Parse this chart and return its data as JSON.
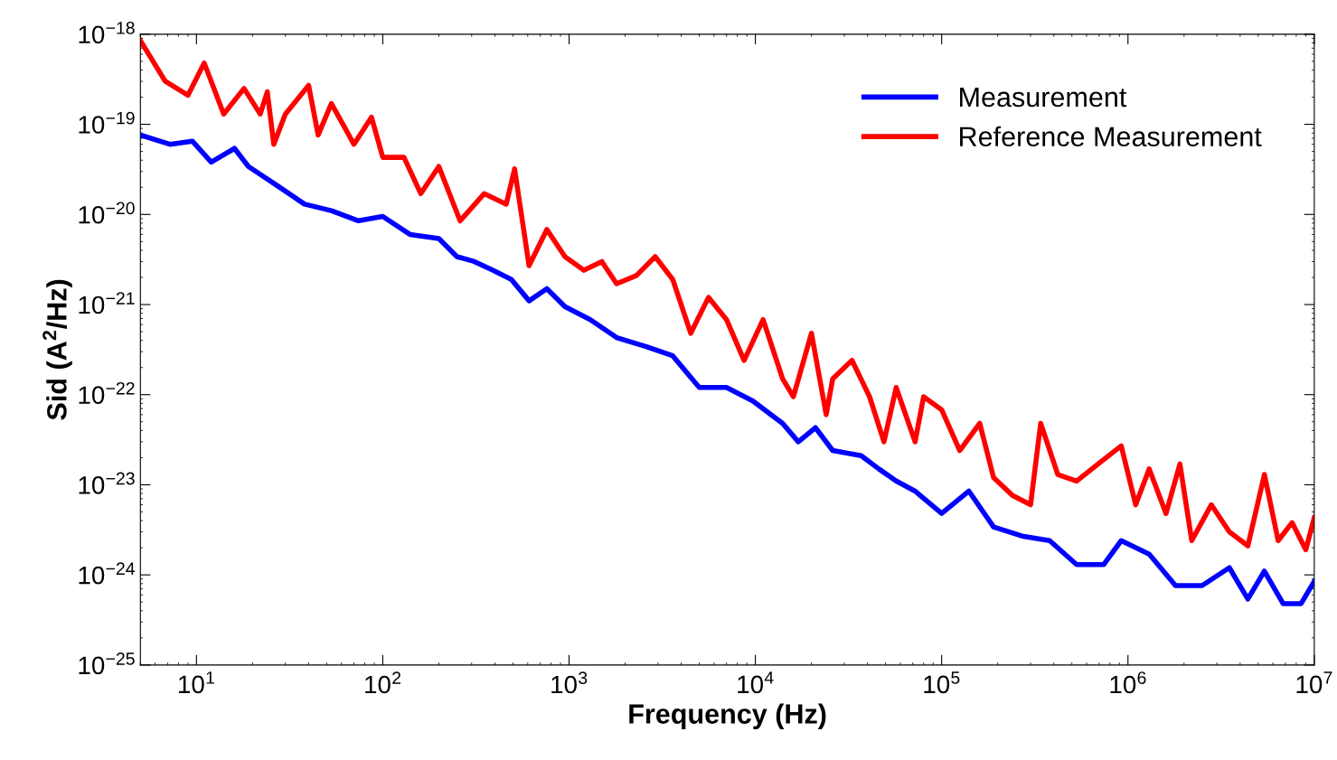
{
  "chart_data": {
    "type": "line",
    "xlabel": "Frequency (Hz)",
    "ylabel": "Sid (A$^{2}$/Hz)",
    "log": "xy",
    "grid": false,
    "legend": "top right",
    "line_style": "solid",
    "marker": "none",
    "xlim": [
      5,
      10000000
    ],
    "ylim": [
      1e-25,
      1e-18
    ],
    "xticks": [
      {
        "value": 10,
        "label": "10$^{1}$"
      },
      {
        "value": 100,
        "label": "10$^{2}$"
      },
      {
        "value": 1000,
        "label": "10$^{3}$"
      },
      {
        "value": 10000,
        "label": "10$^{4}$"
      },
      {
        "value": 100000,
        "label": "10$^{5}$"
      },
      {
        "value": 1000000,
        "label": "10$^{6}$"
      },
      {
        "value": 10000000,
        "label": "10$^{7}$"
      }
    ],
    "yticks": [
      {
        "value": 1e-25,
        "label": "10$^{−25}$"
      },
      {
        "value": 1e-24,
        "label": "10$^{−24}$"
      },
      {
        "value": 1e-23,
        "label": "10$^{−23}$"
      },
      {
        "value": 1e-22,
        "label": "10$^{−22}$"
      },
      {
        "value": 1e-21,
        "label": "10$^{−21}$"
      },
      {
        "value": 1e-20,
        "label": "10$^{−20}$"
      },
      {
        "value": 1e-19,
        "label": "10$^{−19}$"
      },
      {
        "value": 1e-18,
        "label": "10$^{−18}$"
      }
    ],
    "series": [
      {
        "name": "Measurement",
        "color": "#0000ff",
        "x": [
          5,
          7.2,
          9.5,
          12,
          16,
          19,
          27,
          38,
          53,
          74,
          100,
          140,
          200,
          250,
          310,
          390,
          490,
          610,
          760,
          950,
          1300,
          1800,
          2600,
          3600,
          5000,
          7000,
          9700,
          14000,
          17000,
          21000,
          26000,
          37000,
          46000,
          57000,
          72000,
          100000,
          140000,
          190000,
          270000,
          380000,
          530000,
          740000,
          920000,
          1300000,
          1800000,
          2500000,
          3500000,
          4400000,
          5400000,
          6800000,
          8500000,
          10000000
        ],
        "values": [
          7.6e-20,
          6e-20,
          6.5e-20,
          3.8e-20,
          5.4e-20,
          3.4e-20,
          2.1e-20,
          1.3e-20,
          1.1e-20,
          8.5e-21,
          9.5e-21,
          6e-21,
          5.4e-21,
          3.4e-21,
          3e-21,
          2.4e-21,
          1.9e-21,
          1.1e-21,
          1.5e-21,
          9.5e-22,
          6.8e-22,
          4.3e-22,
          3.4e-22,
          2.7e-22,
          1.2e-22,
          1.2e-22,
          8.5e-23,
          4.8e-23,
          3e-23,
          4.3e-23,
          2.4e-23,
          2.1e-23,
          1.5e-23,
          1.1e-23,
          8.5e-24,
          4.8e-24,
          8.5e-24,
          3.4e-24,
          2.7e-24,
          2.4e-24,
          1.3e-24,
          1.3e-24,
          2.4e-24,
          1.7e-24,
          7.6e-25,
          7.6e-25,
          1.2e-24,
          5.4e-25,
          1.1e-24,
          4.8e-25,
          4.8e-25,
          8.5e-25
        ]
      },
      {
        "name": "Reference Measurement",
        "color": "#ff0000",
        "x": [
          5,
          6.8,
          9.0,
          11,
          14,
          18,
          22,
          24,
          26,
          30,
          40,
          45,
          53,
          62,
          70,
          87,
          100,
          130,
          160,
          200,
          260,
          350,
          460,
          510,
          610,
          760,
          950,
          1200,
          1500,
          1800,
          2300,
          2900,
          3600,
          4500,
          5600,
          7000,
          8700,
          11000,
          14000,
          16000,
          20000,
          24000,
          26000,
          33000,
          41000,
          49000,
          57000,
          72000,
          80000,
          100000,
          125000,
          160000,
          190000,
          240000,
          300000,
          340000,
          420000,
          530000,
          740000,
          920000,
          1100000,
          1300000,
          1600000,
          1900000,
          2200000,
          2800000,
          3500000,
          4400000,
          5400000,
          6400000,
          7600000,
          9000000,
          10000000
        ],
        "values": [
          8.5e-19,
          3e-19,
          2.1e-19,
          4.8e-19,
          1.3e-19,
          2.5e-19,
          1.3e-19,
          2.3e-19,
          6e-20,
          1.3e-19,
          2.7e-19,
          7.6e-20,
          1.7e-19,
          9.5e-20,
          6e-20,
          1.2e-19,
          4.3e-20,
          4.3e-20,
          1.7e-20,
          3.4e-20,
          8.5e-21,
          1.7e-20,
          1.3e-20,
          3.2e-20,
          2.7e-21,
          6.8e-21,
          3.4e-21,
          2.4e-21,
          3e-21,
          1.7e-21,
          2.1e-21,
          3.4e-21,
          1.9e-21,
          4.8e-22,
          1.2e-21,
          6.8e-22,
          2.4e-22,
          6.8e-22,
          1.5e-22,
          9.5e-23,
          4.8e-22,
          6e-23,
          1.5e-22,
          2.4e-22,
          9.5e-23,
          3e-23,
          1.2e-22,
          3e-23,
          9.5e-23,
          6.8e-23,
          2.4e-23,
          4.8e-23,
          1.2e-23,
          7.6e-24,
          6e-24,
          4.8e-23,
          1.3e-23,
          1.1e-23,
          1.9e-23,
          2.7e-23,
          6e-24,
          1.5e-23,
          4.8e-24,
          1.7e-23,
          2.4e-24,
          6e-24,
          3e-24,
          2.1e-24,
          1.3e-23,
          2.4e-24,
          3.8e-24,
          1.9e-24,
          4.3e-24
        ]
      }
    ]
  }
}
